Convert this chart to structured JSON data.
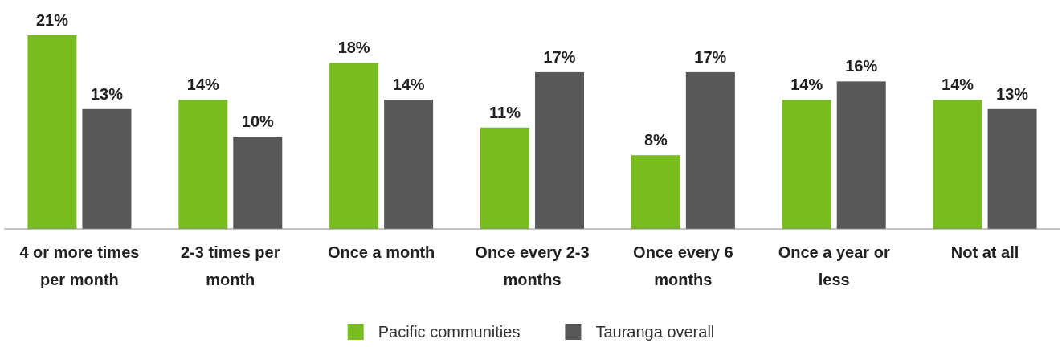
{
  "chart_data": {
    "type": "bar",
    "categories": [
      "4 or more times per month",
      "2-3 times per month",
      "Once a month",
      "Once every 2-3 months",
      "Once every 6 months",
      "Once a year or less",
      "Not at all"
    ],
    "series": [
      {
        "name": "Pacific communities",
        "color": "#78bc20",
        "values": [
          21,
          14,
          18,
          11,
          8,
          14,
          14
        ],
        "value_labels": [
          "21%",
          "14%",
          "18%",
          "11%",
          "8%",
          "14%",
          "14%"
        ]
      },
      {
        "name": "Tauranga overall",
        "color": "#58585a",
        "values": [
          13,
          10,
          14,
          17,
          17,
          16,
          13
        ],
        "value_labels": [
          "13%",
          "10%",
          "14%",
          "17%",
          "17%",
          "16%",
          "13%"
        ]
      }
    ],
    "legend": "bottom"
  }
}
